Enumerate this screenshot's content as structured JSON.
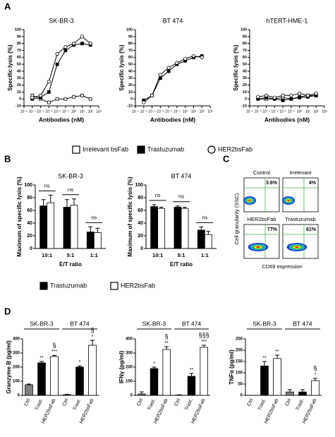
{
  "panel_labels": [
    "A",
    "B",
    "C",
    "D"
  ],
  "chart_data": [
    {
      "type": "line",
      "title": "SK-BR-3",
      "x_label": "Antibodies (nM)",
      "y_label": "Specific lysis (%)",
      "xscale": "log",
      "xlim": [
        1e-06,
        1000
      ],
      "ylim": [
        -10,
        100
      ],
      "xticks": [
        {
          "value": 1e-06,
          "label": "10⁻⁶"
        },
        {
          "value": 1e-05,
          "label": "10⁻⁵"
        },
        {
          "value": 0.0001,
          "label": "10⁻⁴"
        },
        {
          "value": 0.001,
          "label": "10⁻³"
        },
        {
          "value": 0.01,
          "label": "10⁻²"
        },
        {
          "value": 0.1,
          "label": "10⁻¹"
        },
        {
          "value": 1,
          "label": "10⁰"
        },
        {
          "value": 10,
          "label": "10¹"
        },
        {
          "value": 100,
          "label": "10²"
        },
        {
          "value": 1000,
          "label": "10³"
        }
      ],
      "yticks": [
        -10,
        0,
        10,
        20,
        30,
        40,
        50,
        60,
        70,
        80,
        90,
        100
      ],
      "x": [
        1e-05,
        0.0001,
        0.001,
        0.01,
        0.1,
        1,
        10,
        100
      ],
      "series": [
        {
          "name": "Irrelevant  bsFab",
          "marker": "open-square",
          "color": "#000000",
          "values": [
            5,
            0,
            -5,
            0,
            0,
            3,
            5,
            0
          ]
        },
        {
          "name": "Trastuzumab",
          "marker": "filled-square",
          "color": "#000000",
          "values": [
            0,
            2,
            10,
            50,
            70,
            78,
            80,
            78
          ]
        },
        {
          "name": "HER2bsFab",
          "marker": "open-circle",
          "color": "#000000",
          "values": [
            2,
            5,
            25,
            65,
            75,
            80,
            90,
            80
          ]
        }
      ]
    },
    {
      "type": "line",
      "title": "BT 474",
      "x_label": "Antibodies (nM)",
      "y_label": "Specific lysis (%)",
      "xscale": "log",
      "xlim": [
        1e-06,
        1000
      ],
      "ylim": [
        -10,
        100
      ],
      "xticks": [
        {
          "value": 1e-06,
          "label": "10⁻⁶"
        },
        {
          "value": 1e-05,
          "label": "10⁻⁵"
        },
        {
          "value": 0.0001,
          "label": "10⁻⁴"
        },
        {
          "value": 0.001,
          "label": "10⁻³"
        },
        {
          "value": 0.01,
          "label": "10⁻²"
        },
        {
          "value": 0.1,
          "label": "10⁻¹"
        },
        {
          "value": 1,
          "label": "10⁰"
        },
        {
          "value": 10,
          "label": "10¹"
        },
        {
          "value": 100,
          "label": "10²"
        },
        {
          "value": 1000,
          "label": "10³"
        }
      ],
      "yticks": [
        -10,
        0,
        10,
        20,
        30,
        40,
        50,
        60,
        70,
        80,
        90,
        100
      ],
      "x": [
        1e-05,
        0.0001,
        0.001,
        0.01,
        0.1,
        1,
        10,
        100
      ],
      "series": [
        {
          "marker": "filled-square",
          "color": "#000000",
          "values": [
            -2,
            5,
            30,
            40,
            50,
            55,
            60,
            62
          ]
        },
        {
          "marker": "open-circle",
          "color": "#000000",
          "values": [
            -5,
            5,
            35,
            45,
            52,
            58,
            62,
            60
          ]
        }
      ]
    },
    {
      "type": "line",
      "title": "hTERT-HME-1",
      "x_label": "Antibodies (nM)",
      "y_label": "Specific lysis (%)",
      "xscale": "log",
      "xlim": [
        1e-06,
        1000
      ],
      "ylim": [
        -10,
        100
      ],
      "xticks": [
        {
          "value": 1e-06,
          "label": "10⁻⁶"
        },
        {
          "value": 1e-05,
          "label": "10⁻⁵"
        },
        {
          "value": 0.0001,
          "label": "10⁻⁴"
        },
        {
          "value": 0.001,
          "label": "10⁻³"
        },
        {
          "value": 0.01,
          "label": "10⁻²"
        },
        {
          "value": 0.1,
          "label": "10⁻¹"
        },
        {
          "value": 1,
          "label": "10⁰"
        },
        {
          "value": 10,
          "label": "10¹"
        },
        {
          "value": 100,
          "label": "10²"
        },
        {
          "value": 1000,
          "label": "10³"
        }
      ],
      "yticks": [
        -10,
        0,
        10,
        20,
        30,
        40,
        50,
        60,
        70,
        80,
        90,
        100
      ],
      "x": [
        1e-05,
        0.0001,
        0.001,
        0.01,
        0.1,
        1,
        10,
        100
      ],
      "series": [
        {
          "marker": "open-square",
          "color": "#000000",
          "values": [
            0,
            0,
            0,
            2,
            0,
            3,
            5,
            5
          ]
        },
        {
          "marker": "filled-square",
          "color": "#000000",
          "values": [
            0,
            2,
            0,
            -2,
            0,
            2,
            3,
            5
          ]
        },
        {
          "marker": "open-circle",
          "color": "#000000",
          "values": [
            3,
            5,
            2,
            5,
            5,
            8,
            5,
            8
          ]
        }
      ]
    },
    {
      "type": "bar",
      "title": "SK-BR-3",
      "x_label": "E/T ratio",
      "y_label": "Maximum of specific lysis (%)",
      "ylim": [
        0,
        100
      ],
      "yticks": [
        0,
        20,
        40,
        60,
        80,
        100
      ],
      "categories": [
        "10:1",
        "5:1",
        "1:1"
      ],
      "annotations": [
        "ns",
        "ns",
        "ns"
      ],
      "series": [
        {
          "name": "Trastuzumab",
          "color": "#000000",
          "values": [
            67,
            65,
            26
          ],
          "errors": [
            10,
            12,
            8
          ]
        },
        {
          "name": "HER2bsFab",
          "color": "#ffffff",
          "values": [
            72,
            68,
            25
          ],
          "errors": [
            12,
            10,
            7
          ]
        }
      ]
    },
    {
      "type": "bar",
      "title": "BT 474",
      "x_label": "E/T ratio",
      "y_label": "Maximum of specific lysis (%)",
      "ylim": [
        0,
        100
      ],
      "yticks": [
        0,
        20,
        40,
        60,
        80,
        100
      ],
      "categories": [
        "10:1",
        "5:1",
        "1:1"
      ],
      "annotations": [
        "ns",
        "ns",
        "ns"
      ],
      "series": [
        {
          "color": "#000000",
          "values": [
            66,
            65,
            29
          ],
          "errors": [
            3,
            2,
            5
          ]
        },
        {
          "color": "#ffffff",
          "values": [
            63,
            63,
            22
          ],
          "errors": [
            2,
            2,
            5
          ]
        }
      ]
    },
    {
      "type": "column",
      "y_label": "Granzyme B (pg/ml)",
      "groups": [
        "SK-BR-3",
        "BT 474"
      ],
      "ylim": [
        0,
        400
      ],
      "yticks": [
        0,
        100,
        200,
        300,
        400
      ],
      "categories": [
        "Ctrl",
        "Trast.",
        "HER2bsFab",
        "Ctrl",
        "Trast.",
        "HER2bsFab"
      ],
      "colors": [
        "#808080",
        "#000000",
        "#ffffff",
        "#808080",
        "#000000",
        "#ffffff"
      ],
      "values": [
        75,
        230,
        275,
        5,
        200,
        355
      ],
      "errors": [
        5,
        10,
        8,
        2,
        8,
        35
      ],
      "stars": [
        null,
        "**",
        "***",
        null,
        "*",
        "*"
      ],
      "section": [
        null,
        null,
        "§",
        null,
        null,
        "§"
      ]
    },
    {
      "type": "column",
      "y_label": "IFNγ (pg/ml)",
      "groups": [
        "SK-BR-3",
        "BT 474"
      ],
      "ylim": [
        0,
        400
      ],
      "yticks": [
        0,
        100,
        200,
        300,
        400
      ],
      "categories": [
        "Ctrl",
        "Trast.",
        "HER2bsFab",
        "Ctrl",
        "Trast.",
        "HER2bsFab"
      ],
      "colors": [
        "#808080",
        "#000000",
        "#ffffff",
        "#808080",
        "#000000",
        "#ffffff"
      ],
      "values": [
        10,
        190,
        325,
        2,
        135,
        340
      ],
      "errors": [
        15,
        10,
        20,
        2,
        20,
        15
      ],
      "stars": [
        null,
        "*",
        "**",
        null,
        "**",
        "***"
      ],
      "section": [
        null,
        null,
        "§",
        null,
        null,
        "§§§"
      ]
    },
    {
      "type": "column",
      "y_label": "TNFα (pg/ml)",
      "groups": [
        "SK-BR-3",
        "BT 474"
      ],
      "ylim": [
        0,
        250
      ],
      "yticks": [
        0,
        50,
        100,
        150,
        200,
        250
      ],
      "categories": [
        "Ctrl",
        "Trast.",
        "HER2bsFab",
        "Ctrl",
        "Trast.",
        "HER2bsFab"
      ],
      "colors": [
        "#808080",
        "#000000",
        "#ffffff",
        "#808080",
        "#000000",
        "#ffffff"
      ],
      "values": [
        0,
        130,
        163,
        15,
        15,
        65
      ],
      "errors": [
        0,
        20,
        15,
        10,
        10,
        10
      ],
      "stars": [
        null,
        "**",
        "**",
        null,
        null,
        "*"
      ],
      "section": [
        null,
        null,
        null,
        null,
        null,
        "§"
      ]
    }
  ],
  "flow": {
    "x_label": "CD69 expression",
    "y_label": "Cell granularity (SSC)",
    "plots": [
      {
        "name": "Control",
        "percent": "3.6%"
      },
      {
        "name": "Irrelevant",
        "percent": "4%"
      },
      {
        "name": "HER2bsFab",
        "percent": "77%"
      },
      {
        "name": "Trastuzumab",
        "percent": "61%"
      }
    ]
  }
}
